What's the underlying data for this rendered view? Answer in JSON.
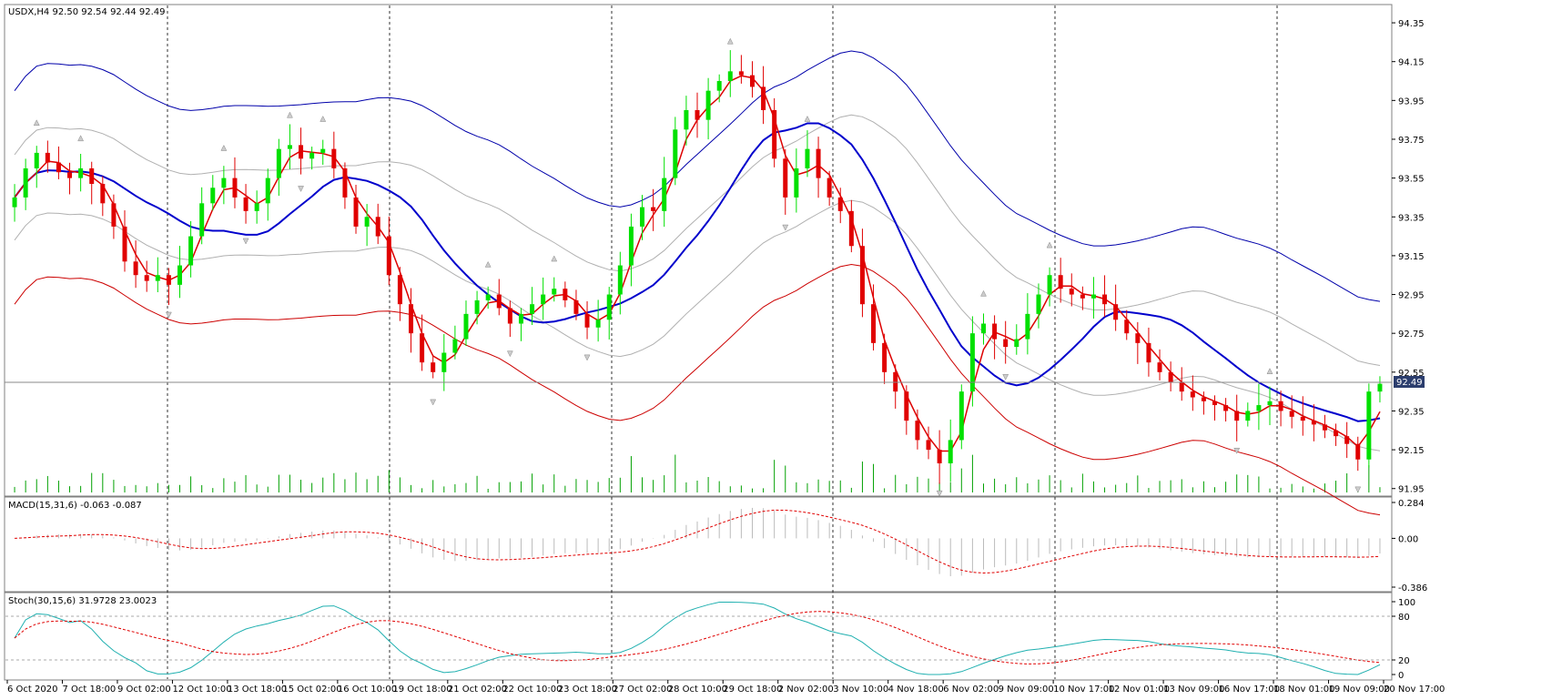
{
  "window": {
    "main_header": "USDX,H4  92.50 92.54 92.44 92.49",
    "macd_header": "MACD(15,31,6) -0.063 -0.087",
    "stoch_header": "Stoch(30,15,6) 31.9728 23.0023",
    "current_price_label": "92.49"
  },
  "colors": {
    "bull": "#00e000",
    "bear": "#e00000",
    "ma_fast": "#dd0000",
    "ma_mid": "#0000cc",
    "env_upper": "#0000aa",
    "env_lower": "#cc0000",
    "inner_band": "#b0b0b0",
    "macd_signal": "#e00000",
    "stoch_main": "#20b0b0",
    "stoch_signal": "#e00000",
    "volume": "#00a000"
  },
  "chart_data": [
    {
      "type": "candlestick",
      "symbol": "USDX",
      "timeframe": "H4",
      "ohlc_last": {
        "open": 92.5,
        "high": 92.54,
        "low": 92.44,
        "close": 92.49
      },
      "ylim": [
        91.93,
        94.43
      ],
      "y_ticks": [
        "94.35",
        "94.15",
        "93.95",
        "93.75",
        "93.55",
        "93.35",
        "93.15",
        "92.95",
        "92.75",
        "92.55",
        "92.35",
        "92.15",
        "91.95"
      ],
      "x_ticks": [
        "6 Oct 2020",
        "7 Oct 18:00",
        "9 Oct 02:00",
        "12 Oct 10:00",
        "13 Oct 18:00",
        "15 Oct 02:00",
        "16 Oct 10:00",
        "19 Oct 18:00",
        "21 Oct 02:00",
        "22 Oct 10:00",
        "23 Oct 18:00",
        "27 Oct 02:00",
        "28 Oct 10:00",
        "29 Oct 18:00",
        "2 Nov 02:00",
        "3 Nov 10:00",
        "4 Nov 18:00",
        "6 Nov 02:00",
        "9 Nov 09:00",
        "10 Nov 17:00",
        "12 Nov 01:00",
        "13 Nov 09:00",
        "16 Nov 17:00",
        "18 Nov 01:00",
        "19 Nov 09:00",
        "20 Nov 17:00"
      ],
      "close_path": [
        93.45,
        93.6,
        93.68,
        93.63,
        93.58,
        93.55,
        93.6,
        93.52,
        93.42,
        93.3,
        93.12,
        93.05,
        93.02,
        93.05,
        93.0,
        93.1,
        93.25,
        93.42,
        93.5,
        93.55,
        93.45,
        93.38,
        93.42,
        93.55,
        93.7,
        93.72,
        93.65,
        93.68,
        93.7,
        93.6,
        93.45,
        93.3,
        93.35,
        93.25,
        93.05,
        92.9,
        92.75,
        92.6,
        92.55,
        92.65,
        92.72,
        92.85,
        92.92,
        92.95,
        92.88,
        92.8,
        92.85,
        92.9,
        92.95,
        92.98,
        92.92,
        92.85,
        92.78,
        92.82,
        92.95,
        93.1,
        93.3,
        93.4,
        93.38,
        93.55,
        93.8,
        93.9,
        93.85,
        94.0,
        94.05,
        94.1,
        94.08,
        94.02,
        93.9,
        93.65,
        93.45,
        93.6,
        93.7,
        93.55,
        93.45,
        93.38,
        93.2,
        92.9,
        92.7,
        92.55,
        92.45,
        92.3,
        92.2,
        92.15,
        92.08,
        92.2,
        92.45,
        92.75,
        92.8,
        92.72,
        92.68,
        92.72,
        92.85,
        92.95,
        93.05,
        92.98,
        92.95,
        92.93,
        92.95,
        92.9,
        92.82,
        92.75,
        92.7,
        92.6,
        92.55,
        92.5,
        92.45,
        92.42,
        92.4,
        92.38,
        92.35,
        92.3,
        92.35,
        92.38,
        92.4,
        92.35,
        92.32,
        92.3,
        92.28,
        92.25,
        92.22,
        92.18,
        92.1,
        92.45,
        92.49
      ],
      "bull_arrows_count": 20,
      "volume_bars": true
    },
    {
      "type": "histogram+line",
      "name": "MACD(15,31,6)",
      "values_last": [
        -0.063,
        -0.087
      ],
      "ylim": [
        -0.386,
        0.284
      ],
      "y_ticks": [
        "0.284",
        "0.00",
        "-0.386"
      ]
    },
    {
      "type": "line",
      "name": "Stoch(30,15,6)",
      "values_last": [
        31.9728,
        23.0023
      ],
      "ylim": [
        0,
        100
      ],
      "levels": [
        80,
        20
      ],
      "y_ticks": [
        "100",
        "80",
        "20",
        "0"
      ]
    }
  ]
}
